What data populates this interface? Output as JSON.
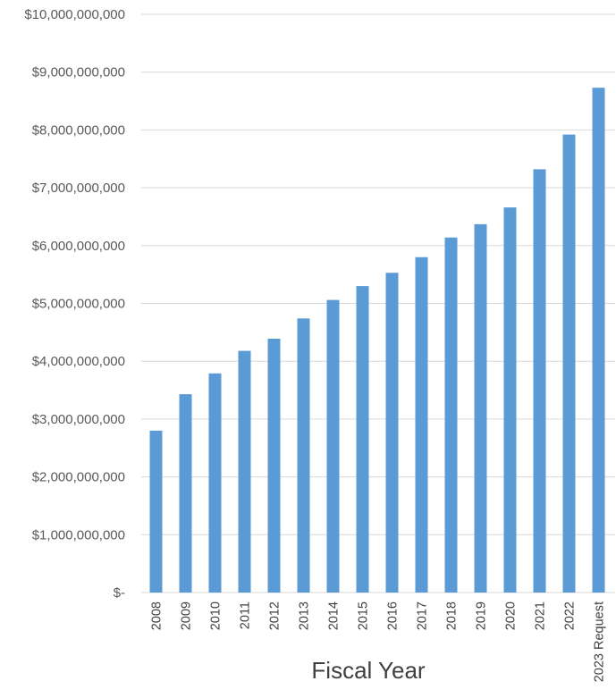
{
  "chart_data": {
    "type": "bar",
    "title": "",
    "xlabel": "Fiscal Year",
    "ylabel": "",
    "ylim": [
      0,
      10000000000
    ],
    "grid": true,
    "legend": "none",
    "yticks": [
      {
        "value": 0,
        "label": "$-"
      },
      {
        "value": 1000000000,
        "label": "$1,000,000,000"
      },
      {
        "value": 2000000000,
        "label": "$2,000,000,000"
      },
      {
        "value": 3000000000,
        "label": "$3,000,000,000"
      },
      {
        "value": 4000000000,
        "label": "$4,000,000,000"
      },
      {
        "value": 5000000000,
        "label": "$5,000,000,000"
      },
      {
        "value": 6000000000,
        "label": "$6,000,000,000"
      },
      {
        "value": 7000000000,
        "label": "$7,000,000,000"
      },
      {
        "value": 8000000000,
        "label": "$8,000,000,000"
      },
      {
        "value": 9000000000,
        "label": "$9,000,000,000"
      },
      {
        "value": 10000000000,
        "label": "$10,000,000,000"
      }
    ],
    "categories": [
      "2008",
      "2009",
      "2010",
      "2011",
      "2012",
      "2013",
      "2014",
      "2015",
      "2016",
      "2017",
      "2018",
      "2019",
      "2020",
      "2021",
      "2022",
      "2023 Request"
    ],
    "values": [
      2800000000,
      3430000000,
      3790000000,
      4180000000,
      4390000000,
      4740000000,
      5060000000,
      5300000000,
      5530000000,
      5800000000,
      6140000000,
      6370000000,
      6660000000,
      7320000000,
      7920000000,
      8730000000
    ],
    "bar_color": "#5b9bd5",
    "grid_color": "#d9d9d9"
  }
}
